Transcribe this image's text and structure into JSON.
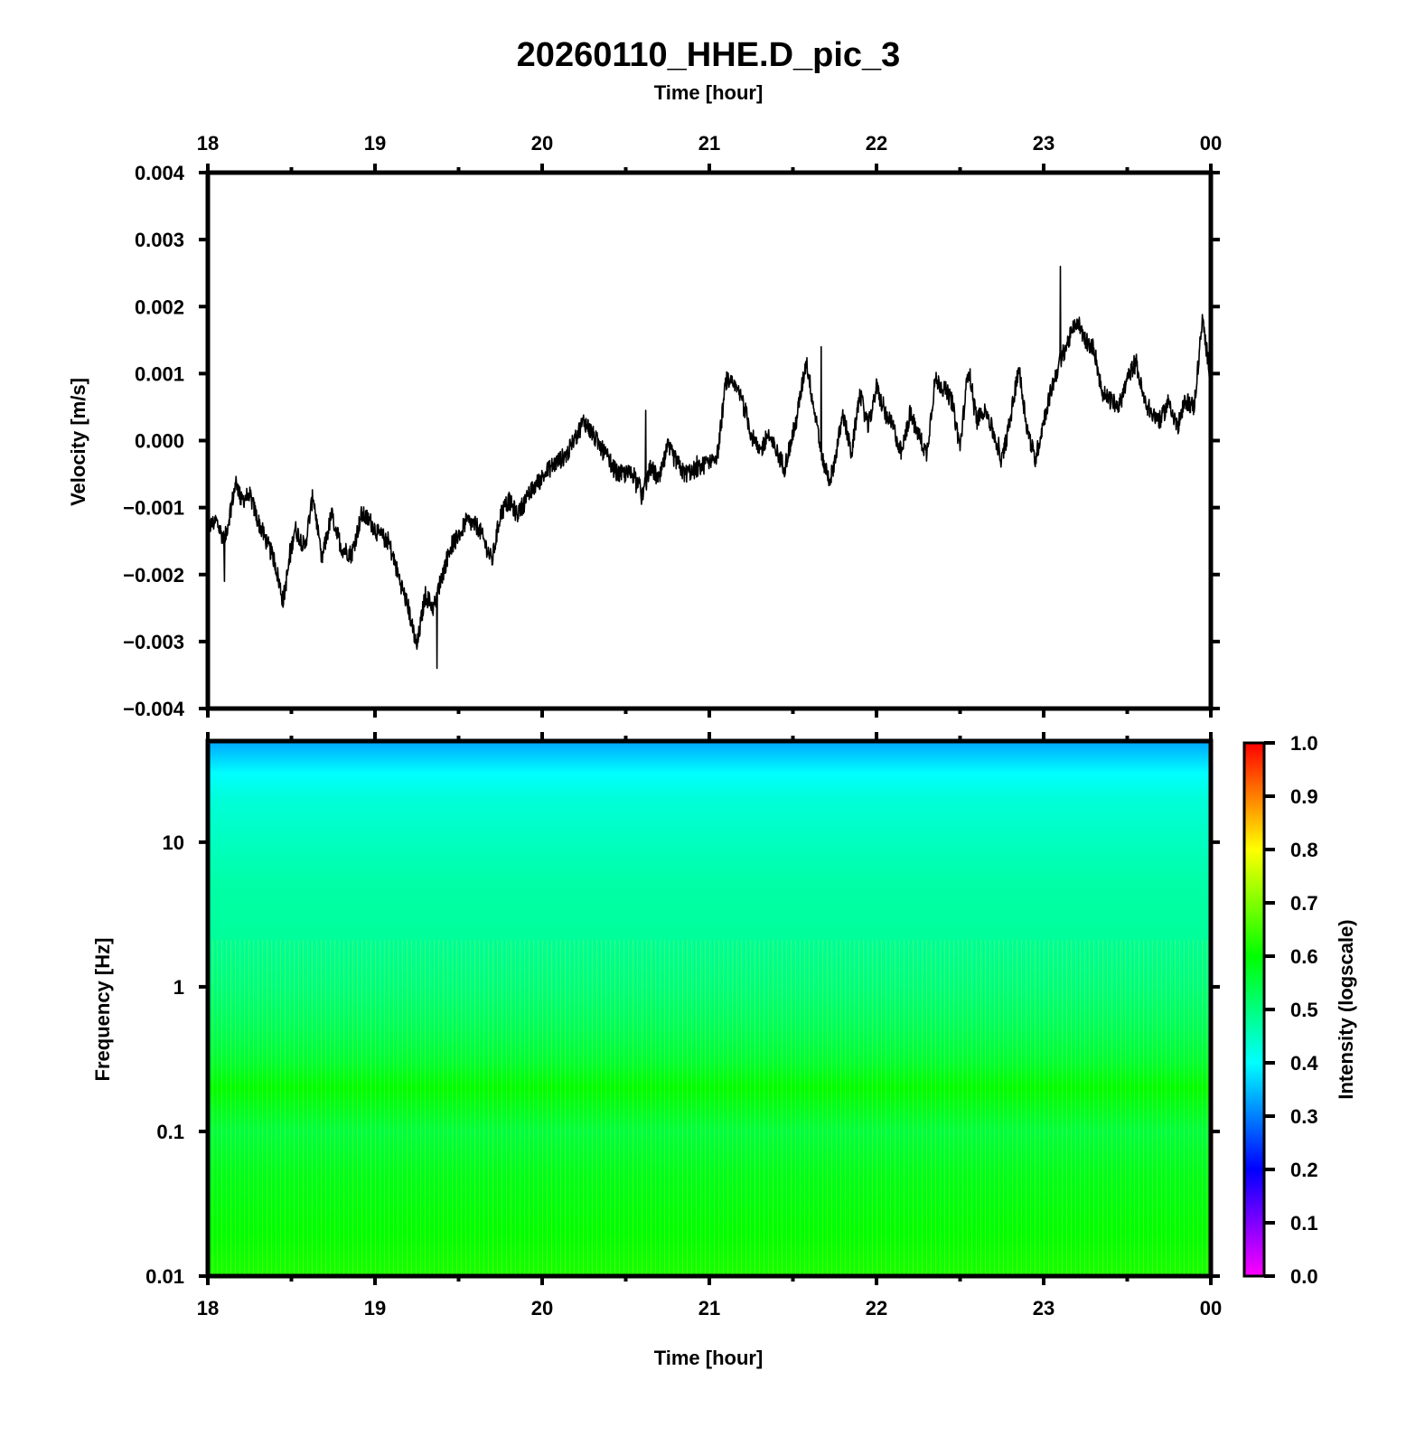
{
  "title": "20260110_HHE.D_pic_3",
  "colors": {
    "axes": "#000000",
    "trace": "#000000",
    "colormap": [
      "#ff00ff",
      "#0000ff",
      "#00ffff",
      "#00ff00",
      "#ffff00",
      "#ff0000"
    ]
  },
  "chart_data": [
    {
      "type": "line",
      "title": "",
      "xlabel": "Time [hour]",
      "ylabel": "Velocity [m/s]",
      "x_ticks": [
        "18",
        "19",
        "20",
        "21",
        "22",
        "23",
        "00"
      ],
      "xlim": [
        18,
        24
      ],
      "ylim": [
        -0.004,
        0.004
      ],
      "y_ticks": [
        "0.004",
        "0.003",
        "0.002",
        "0.001",
        "0.000",
        "−0.001",
        "−0.002",
        "−0.003",
        "−0.004"
      ],
      "x_axis_position": "top",
      "series": [
        {
          "x": [
            18.0,
            18.05,
            18.1,
            18.17,
            18.2,
            18.25,
            18.3,
            18.35,
            18.4,
            18.45,
            18.52,
            18.58,
            18.63,
            18.68,
            18.74,
            18.8,
            18.86,
            18.92,
            18.97,
            19.02,
            19.08,
            19.15,
            19.2,
            19.25,
            19.3,
            19.35,
            19.38,
            19.45,
            19.5,
            19.55,
            19.62,
            19.7,
            19.75,
            19.8,
            19.85,
            19.95,
            20.05,
            20.15,
            20.25,
            20.35,
            20.45,
            20.55,
            20.6,
            20.65,
            20.7,
            20.75,
            20.85,
            20.95,
            21.05,
            21.1,
            21.15,
            21.2,
            21.25,
            21.3,
            21.35,
            21.45,
            21.52,
            21.58,
            21.65,
            21.68,
            21.72,
            21.75,
            21.8,
            21.85,
            21.9,
            21.95,
            22.0,
            22.05,
            22.1,
            22.15,
            22.2,
            22.25,
            22.3,
            22.35,
            22.4,
            22.45,
            22.5,
            22.55,
            22.6,
            22.65,
            22.7,
            22.75,
            22.8,
            22.85,
            22.9,
            22.95,
            23.0,
            23.05,
            23.1,
            23.2,
            23.25,
            23.3,
            23.35,
            23.4,
            23.45,
            23.5,
            23.55,
            23.6,
            23.65,
            23.7,
            23.75,
            23.8,
            23.85,
            23.9,
            23.95,
            24.0
          ],
          "y": [
            -0.0013,
            -0.0012,
            -0.0015,
            -0.0006,
            -0.0009,
            -0.0008,
            -0.0012,
            -0.0015,
            -0.0018,
            -0.0024,
            -0.0013,
            -0.0016,
            -0.0008,
            -0.0018,
            -0.0011,
            -0.0016,
            -0.0017,
            -0.0011,
            -0.0012,
            -0.0014,
            -0.0015,
            -0.0021,
            -0.0025,
            -0.0031,
            -0.0023,
            -0.0025,
            -0.0022,
            -0.0016,
            -0.0014,
            -0.0012,
            -0.0013,
            -0.0018,
            -0.0011,
            -0.0009,
            -0.0011,
            -0.0007,
            -0.0004,
            -0.0002,
            0.0003,
            -0.0001,
            -0.0005,
            -0.0005,
            -0.0008,
            -0.0004,
            -0.0006,
            -0.0001,
            -0.0005,
            -0.0004,
            -0.0002,
            0.0009,
            0.0008,
            0.0006,
            0.0001,
            -0.0002,
            0.0001,
            -0.0004,
            0.0003,
            0.0012,
            0.0001,
            -0.0003,
            -0.0006,
            -0.0003,
            0.0004,
            -0.0002,
            0.0007,
            0.0002,
            0.0008,
            0.0004,
            0.0002,
            -0.0002,
            0.0004,
            0.0001,
            -0.0002,
            0.0009,
            0.0008,
            0.0006,
            -0.0001,
            0.0011,
            0.0003,
            0.0005,
            0.0001,
            -0.0003,
            0.0003,
            0.0011,
            0.0002,
            -0.0003,
            0.0003,
            0.0008,
            0.0012,
            0.0018,
            0.0015,
            0.0014,
            0.0007,
            0.0006,
            0.0005,
            0.0009,
            0.0012,
            0.0006,
            0.0004,
            0.0003,
            0.0006,
            0.0002,
            0.0006,
            0.0005,
            0.0018,
            0.0009
          ]
        }
      ]
    },
    {
      "type": "heatmap",
      "title": "",
      "xlabel": "Time [hour]",
      "ylabel": "Frequency [Hz]",
      "x_ticks": [
        "18",
        "19",
        "20",
        "21",
        "22",
        "23",
        "00"
      ],
      "xlim": [
        18,
        24
      ],
      "yscale": "log",
      "ylim": [
        0.01,
        50
      ],
      "y_ticks": [
        "10",
        "1",
        "0.1",
        "0.01"
      ],
      "intensity_by_frequency": {
        "frequency_hz": [
          50,
          40,
          30,
          20,
          10,
          5,
          2,
          1,
          0.5,
          0.3,
          0.2,
          0.1,
          0.05,
          0.02,
          0.01
        ],
        "intensity": [
          0.33,
          0.36,
          0.4,
          0.43,
          0.45,
          0.47,
          0.48,
          0.5,
          0.53,
          0.56,
          0.6,
          0.55,
          0.58,
          0.6,
          0.62
        ]
      },
      "colorbar": {
        "label": "Intensity (logscale)",
        "range": [
          0.0,
          1.0
        ],
        "ticks": [
          "1.0",
          "0.9",
          "0.8",
          "0.7",
          "0.6",
          "0.5",
          "0.4",
          "0.3",
          "0.2",
          "0.1",
          "0.0"
        ]
      }
    }
  ]
}
